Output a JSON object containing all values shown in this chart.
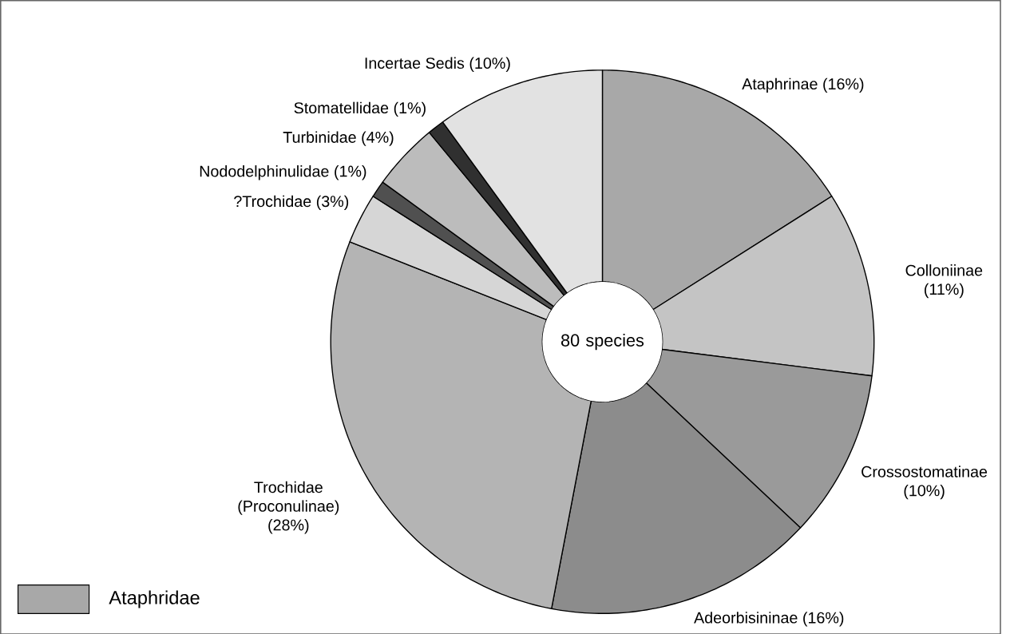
{
  "chart_data": {
    "type": "donut",
    "categories": [
      "Ataphrinae",
      "Colloniinae",
      "Crossostomatinae",
      "Adeorbisininae",
      "Trochidae (Proconulinae)",
      "?Trochidae",
      "Nododelphinulidae",
      "Turbinidae",
      "Stomatellidae",
      "Incertae Sedis"
    ],
    "values": [
      16,
      11,
      10,
      16,
      28,
      3,
      1,
      4,
      1,
      10
    ],
    "value_labels": [
      "(16%)",
      "(11%)",
      "(10%)",
      "(16%)",
      "(28%)",
      "(3%)",
      "(1%)",
      "(4%)",
      "(1%)",
      "(10%)"
    ],
    "colors": [
      "#a8a8a8",
      "#c4c4c4",
      "#9a9a9a",
      "#8c8c8c",
      "#b4b4b4",
      "#d6d6d6",
      "#505050",
      "#bcbcbc",
      "#303030",
      "#e2e2e2"
    ],
    "annotations": [
      "80 species",
      "Ataphridae"
    ]
  }
}
